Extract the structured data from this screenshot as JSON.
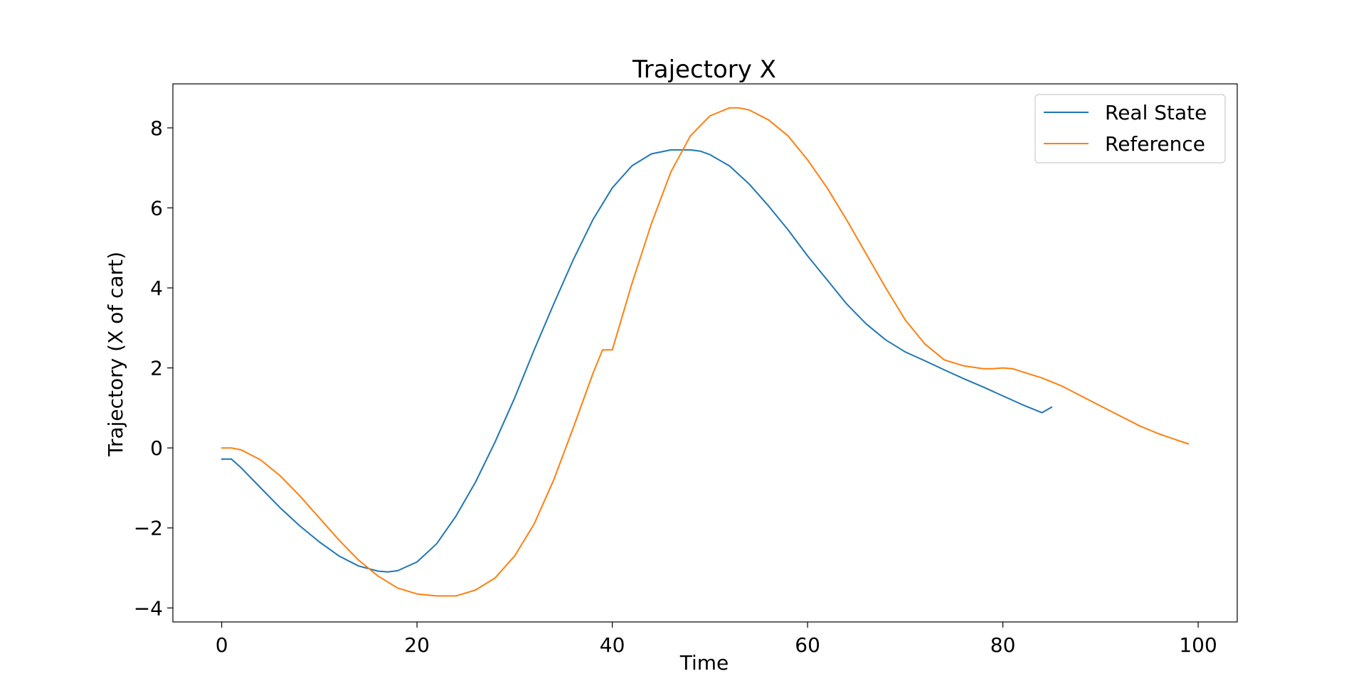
{
  "chart_data": {
    "type": "line",
    "title": "Trajectory X",
    "xlabel": "Time",
    "ylabel": "Trajectory (X of cart)",
    "xlim": [
      -5,
      104
    ],
    "ylim": [
      -4.35,
      9.1
    ],
    "xticks": [
      0,
      20,
      40,
      60,
      80,
      100
    ],
    "xtick_labels": [
      "0",
      "20",
      "40",
      "60",
      "80",
      "100"
    ],
    "yticks": [
      -4,
      -2,
      0,
      2,
      4,
      6,
      8
    ],
    "ytick_labels": [
      "−4",
      "−2",
      "0",
      "2",
      "4",
      "6",
      "8"
    ],
    "grid": false,
    "legend_position": "top-right",
    "series": [
      {
        "name": "Real State",
        "color": "#1f77b4",
        "x": [
          0,
          1,
          2,
          4,
          6,
          8,
          10,
          12,
          14,
          16,
          17,
          18,
          20,
          22,
          24,
          26,
          28,
          30,
          32,
          34,
          36,
          38,
          40,
          42,
          44,
          46,
          48,
          49,
          50,
          52,
          54,
          56,
          58,
          60,
          62,
          64,
          66,
          68,
          70,
          72,
          74,
          76,
          78,
          80,
          82,
          84,
          85
        ],
        "y": [
          -0.28,
          -0.28,
          -0.5,
          -1.0,
          -1.5,
          -1.95,
          -2.35,
          -2.7,
          -2.95,
          -3.08,
          -3.1,
          -3.07,
          -2.85,
          -2.4,
          -1.7,
          -0.85,
          0.15,
          1.25,
          2.45,
          3.6,
          4.7,
          5.7,
          6.5,
          7.05,
          7.35,
          7.45,
          7.45,
          7.42,
          7.33,
          7.05,
          6.6,
          6.05,
          5.45,
          4.8,
          4.2,
          3.6,
          3.1,
          2.7,
          2.4,
          2.18,
          1.95,
          1.73,
          1.52,
          1.3,
          1.08,
          0.88,
          1.02
        ]
      },
      {
        "name": "Reference",
        "color": "#ff7f0e",
        "x": [
          0,
          1,
          2,
          4,
          6,
          8,
          10,
          12,
          14,
          16,
          18,
          20,
          22,
          24,
          26,
          28,
          30,
          32,
          34,
          36,
          38,
          39,
          40,
          42,
          44,
          46,
          48,
          50,
          52,
          53,
          54,
          56,
          58,
          60,
          62,
          64,
          66,
          68,
          70,
          72,
          74,
          76,
          78,
          79,
          80,
          81,
          82,
          84,
          86,
          88,
          90,
          92,
          94,
          96,
          98,
          99
        ],
        "y": [
          0.0,
          0.0,
          -0.05,
          -0.3,
          -0.7,
          -1.2,
          -1.75,
          -2.3,
          -2.8,
          -3.2,
          -3.5,
          -3.65,
          -3.7,
          -3.7,
          -3.55,
          -3.25,
          -2.7,
          -1.9,
          -0.8,
          0.5,
          1.85,
          2.45,
          2.45,
          4.1,
          5.6,
          6.9,
          7.8,
          8.3,
          8.5,
          8.5,
          8.45,
          8.2,
          7.8,
          7.2,
          6.5,
          5.7,
          4.85,
          4.0,
          3.2,
          2.6,
          2.2,
          2.05,
          1.98,
          1.98,
          2.0,
          1.98,
          1.9,
          1.75,
          1.55,
          1.3,
          1.05,
          0.8,
          0.55,
          0.35,
          0.18,
          0.1
        ]
      }
    ]
  }
}
